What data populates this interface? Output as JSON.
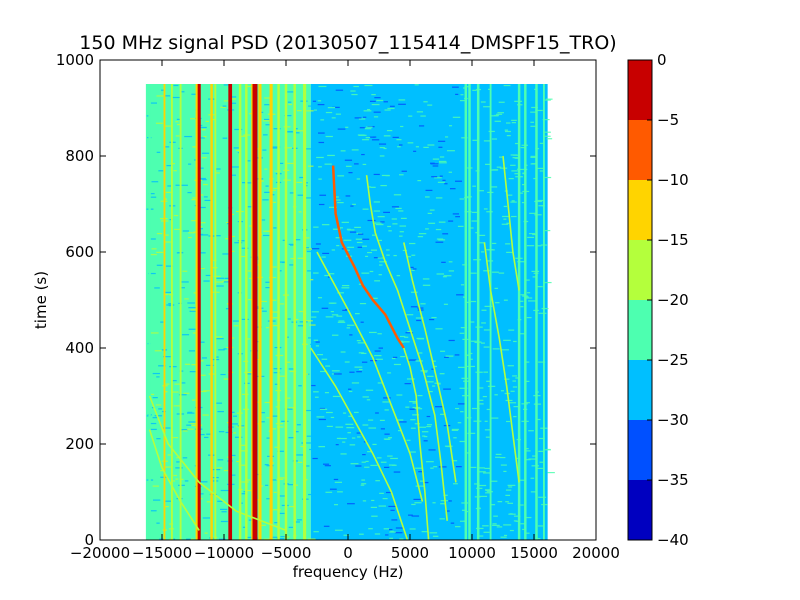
{
  "chart_data": {
    "type": "heatmap",
    "title": "150 MHz signal PSD (20130507_115414_DMSPF15_TRO)",
    "xlabel": "frequency (Hz)",
    "ylabel": "time (s)",
    "xlim": [
      -20000,
      20000
    ],
    "ylim": [
      0,
      1000
    ],
    "x_ticks": [
      -20000,
      -15000,
      -10000,
      -5000,
      0,
      5000,
      10000,
      15000,
      20000
    ],
    "x_tick_labels": [
      "−20000",
      "−15000",
      "−10000",
      "−5000",
      "0",
      "5000",
      "10000",
      "15000",
      "20000"
    ],
    "y_ticks": [
      0,
      200,
      400,
      600,
      800,
      1000
    ],
    "y_tick_labels": [
      "0",
      "200",
      "400",
      "600",
      "800",
      "1000"
    ],
    "data_extent": {
      "x": [
        -16300,
        16100
      ],
      "y": [
        0,
        950
      ]
    },
    "color_scale": {
      "levels": [
        -40,
        -35,
        -30,
        -25,
        -20,
        -15,
        -10,
        -5,
        0
      ],
      "tick_labels": [
        "−40",
        "−35",
        "−30",
        "−25",
        "−20",
        "−15",
        "−10",
        "−5",
        "0"
      ],
      "colors": [
        "#0000c0",
        "#0050ff",
        "#00bfff",
        "#4dffb0",
        "#b4ff3c",
        "#ffd400",
        "#ff5a00",
        "#c80000"
      ]
    },
    "background_regions": [
      {
        "x": [
          -16300,
          -3000
        ],
        "level": -22.5
      },
      {
        "x": [
          -3000,
          0
        ],
        "level": -25.5
      },
      {
        "x": [
          0,
          16100
        ],
        "level": -27.5
      }
    ],
    "vertical_lines": [
      {
        "x": -16000,
        "level": -22,
        "width_hz": 200
      },
      {
        "x": -14800,
        "level": -12,
        "width_hz": 150
      },
      {
        "x": -14200,
        "level": -18,
        "width_hz": 150
      },
      {
        "x": -13500,
        "level": -18,
        "width_hz": 150
      },
      {
        "x": -12200,
        "level": -12,
        "width_hz": 180
      },
      {
        "x": -12000,
        "level": -3,
        "width_hz": 250
      },
      {
        "x": -11000,
        "level": -12,
        "width_hz": 200
      },
      {
        "x": -10700,
        "level": -18,
        "width_hz": 150
      },
      {
        "x": -9500,
        "level": -3,
        "width_hz": 300
      },
      {
        "x": -8700,
        "level": -18,
        "width_hz": 200
      },
      {
        "x": -8200,
        "level": -18,
        "width_hz": 200
      },
      {
        "x": -7700,
        "level": -12,
        "width_hz": 200
      },
      {
        "x": -7500,
        "level": -2,
        "width_hz": 400
      },
      {
        "x": -7100,
        "level": -12,
        "width_hz": 250
      },
      {
        "x": -6200,
        "level": -12,
        "width_hz": 250
      },
      {
        "x": -5600,
        "level": -18,
        "width_hz": 200
      },
      {
        "x": -5000,
        "level": -18,
        "width_hz": 200
      },
      {
        "x": -4300,
        "level": -18,
        "width_hz": 200
      },
      {
        "x": -3500,
        "level": -18,
        "width_hz": 250
      },
      {
        "x": 9500,
        "level": -22,
        "width_hz": 200
      },
      {
        "x": 9800,
        "level": -22,
        "width_hz": 200
      },
      {
        "x": 10500,
        "level": -22,
        "width_hz": 200
      },
      {
        "x": 11500,
        "level": -22,
        "width_hz": 150
      },
      {
        "x": 13800,
        "level": -22,
        "width_hz": 200
      },
      {
        "x": 14300,
        "level": -22,
        "width_hz": 200
      },
      {
        "x": 15200,
        "level": -22,
        "width_hz": 200
      },
      {
        "x": 15800,
        "level": -22,
        "width_hz": 150
      }
    ],
    "traces": [
      {
        "level": -8,
        "points": [
          [
            -1200,
            780
          ],
          [
            -1000,
            680
          ],
          [
            -500,
            620
          ],
          [
            500,
            570
          ],
          [
            1200,
            530
          ],
          [
            2000,
            500
          ],
          [
            3000,
            470
          ],
          [
            4000,
            420
          ],
          [
            4500,
            400
          ]
        ]
      },
      {
        "level": -16,
        "points": [
          [
            4500,
            400
          ],
          [
            5000,
            360
          ],
          [
            5500,
            300
          ],
          [
            5800,
            200
          ],
          [
            6200,
            100
          ],
          [
            6500,
            0
          ]
        ]
      },
      {
        "level": -18,
        "points": [
          [
            1500,
            760
          ],
          [
            1800,
            700
          ],
          [
            2200,
            640
          ],
          [
            3000,
            580
          ],
          [
            4000,
            520
          ],
          [
            5000,
            440
          ],
          [
            6000,
            360
          ],
          [
            7000,
            260
          ],
          [
            7500,
            160
          ],
          [
            8000,
            40
          ]
        ]
      },
      {
        "level": -18,
        "points": [
          [
            4500,
            620
          ],
          [
            5200,
            540
          ],
          [
            6200,
            440
          ],
          [
            7300,
            320
          ],
          [
            8000,
            240
          ],
          [
            8700,
            120
          ]
        ]
      },
      {
        "level": -18,
        "points": [
          [
            11000,
            620
          ],
          [
            11500,
            520
          ],
          [
            12200,
            420
          ],
          [
            12800,
            320
          ],
          [
            13300,
            220
          ],
          [
            13800,
            120
          ]
        ]
      },
      {
        "level": -18,
        "points": [
          [
            12500,
            800
          ],
          [
            12900,
            700
          ],
          [
            13300,
            600
          ],
          [
            13800,
            520
          ]
        ]
      },
      {
        "level": -18,
        "points": [
          [
            -3000,
            400
          ],
          [
            -1000,
            320
          ],
          [
            500,
            250
          ],
          [
            2000,
            180
          ],
          [
            3500,
            100
          ],
          [
            4800,
            0
          ]
        ]
      },
      {
        "level": -18,
        "points": [
          [
            -2500,
            600
          ],
          [
            0,
            480
          ],
          [
            2000,
            380
          ],
          [
            3500,
            280
          ],
          [
            5000,
            180
          ],
          [
            6000,
            80
          ]
        ]
      },
      {
        "level": -18,
        "points": [
          [
            -16000,
            300
          ],
          [
            -14500,
            200
          ],
          [
            -12000,
            120
          ],
          [
            -9000,
            60
          ],
          [
            -5000,
            20
          ]
        ]
      },
      {
        "level": -18,
        "points": [
          [
            -16000,
            230
          ],
          [
            -15000,
            150
          ],
          [
            -13500,
            80
          ],
          [
            -12000,
            20
          ]
        ]
      }
    ]
  }
}
